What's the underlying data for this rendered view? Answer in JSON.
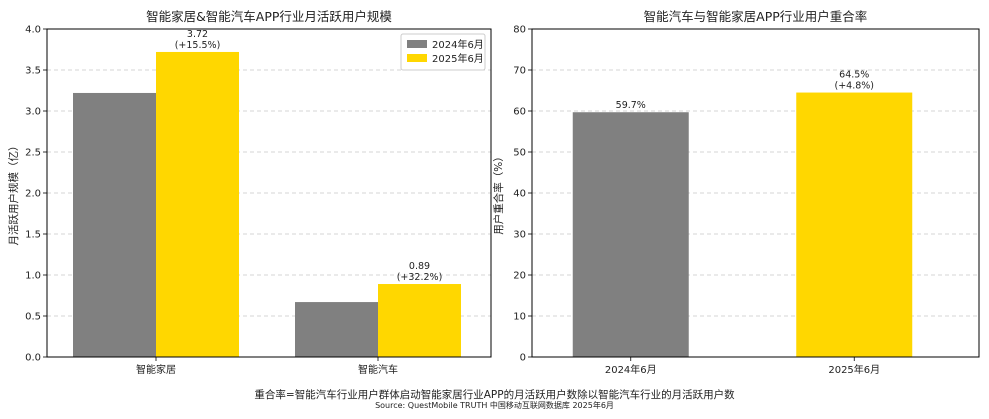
{
  "colors": {
    "y2024": "#808080",
    "y2025": "#FFD700",
    "grid": "#c8c8c8",
    "axis": "#000000"
  },
  "chart_data": [
    {
      "type": "bar",
      "title": "智能家居&智能汽车APP行业月活跃用户规模",
      "ylabel": "月活跃用户规模（亿）",
      "xlabel": "",
      "categories": [
        "智能家居",
        "智能汽车"
      ],
      "series": [
        {
          "name": "2024年6月",
          "values": [
            3.22,
            0.67
          ]
        },
        {
          "name": "2025年6月",
          "values": [
            3.72,
            0.89
          ]
        }
      ],
      "data_labels": [
        {
          "category": "智能家居",
          "series": "2025年6月",
          "lines": [
            "3.72",
            "(+15.5%)"
          ]
        },
        {
          "category": "智能汽车",
          "series": "2025年6月",
          "lines": [
            "0.89",
            "(+32.2%)"
          ]
        }
      ],
      "ylim": [
        0,
        4.0
      ],
      "yticks": [
        "0.0",
        "0.5",
        "1.0",
        "1.5",
        "2.0",
        "2.5",
        "3.0",
        "3.5",
        "4.0"
      ],
      "grid": "y-dashed",
      "legend": "top-right"
    },
    {
      "type": "bar",
      "title": "智能汽车与智能家居APP行业用户重合率",
      "ylabel": "用户重合率（%）",
      "xlabel": "",
      "categories": [
        "2024年6月",
        "2025年6月"
      ],
      "values": [
        59.7,
        64.5
      ],
      "data_labels": [
        {
          "category": "2024年6月",
          "lines": [
            "59.7%"
          ]
        },
        {
          "category": "2025年6月",
          "lines": [
            "64.5%",
            "(+4.8%)"
          ]
        }
      ],
      "ylim": [
        0,
        80
      ],
      "yticks": [
        "0",
        "10",
        "20",
        "30",
        "40",
        "50",
        "60",
        "70",
        "80"
      ],
      "grid": "y-dashed"
    }
  ],
  "footnote": "重合率=智能汽车行业用户群体启动智能家居行业APP的月活跃用户数除以智能汽车行业的月活跃用户数",
  "source": "Source: QuestMobile TRUTH 中国移动互联网数据库 2025年6月"
}
